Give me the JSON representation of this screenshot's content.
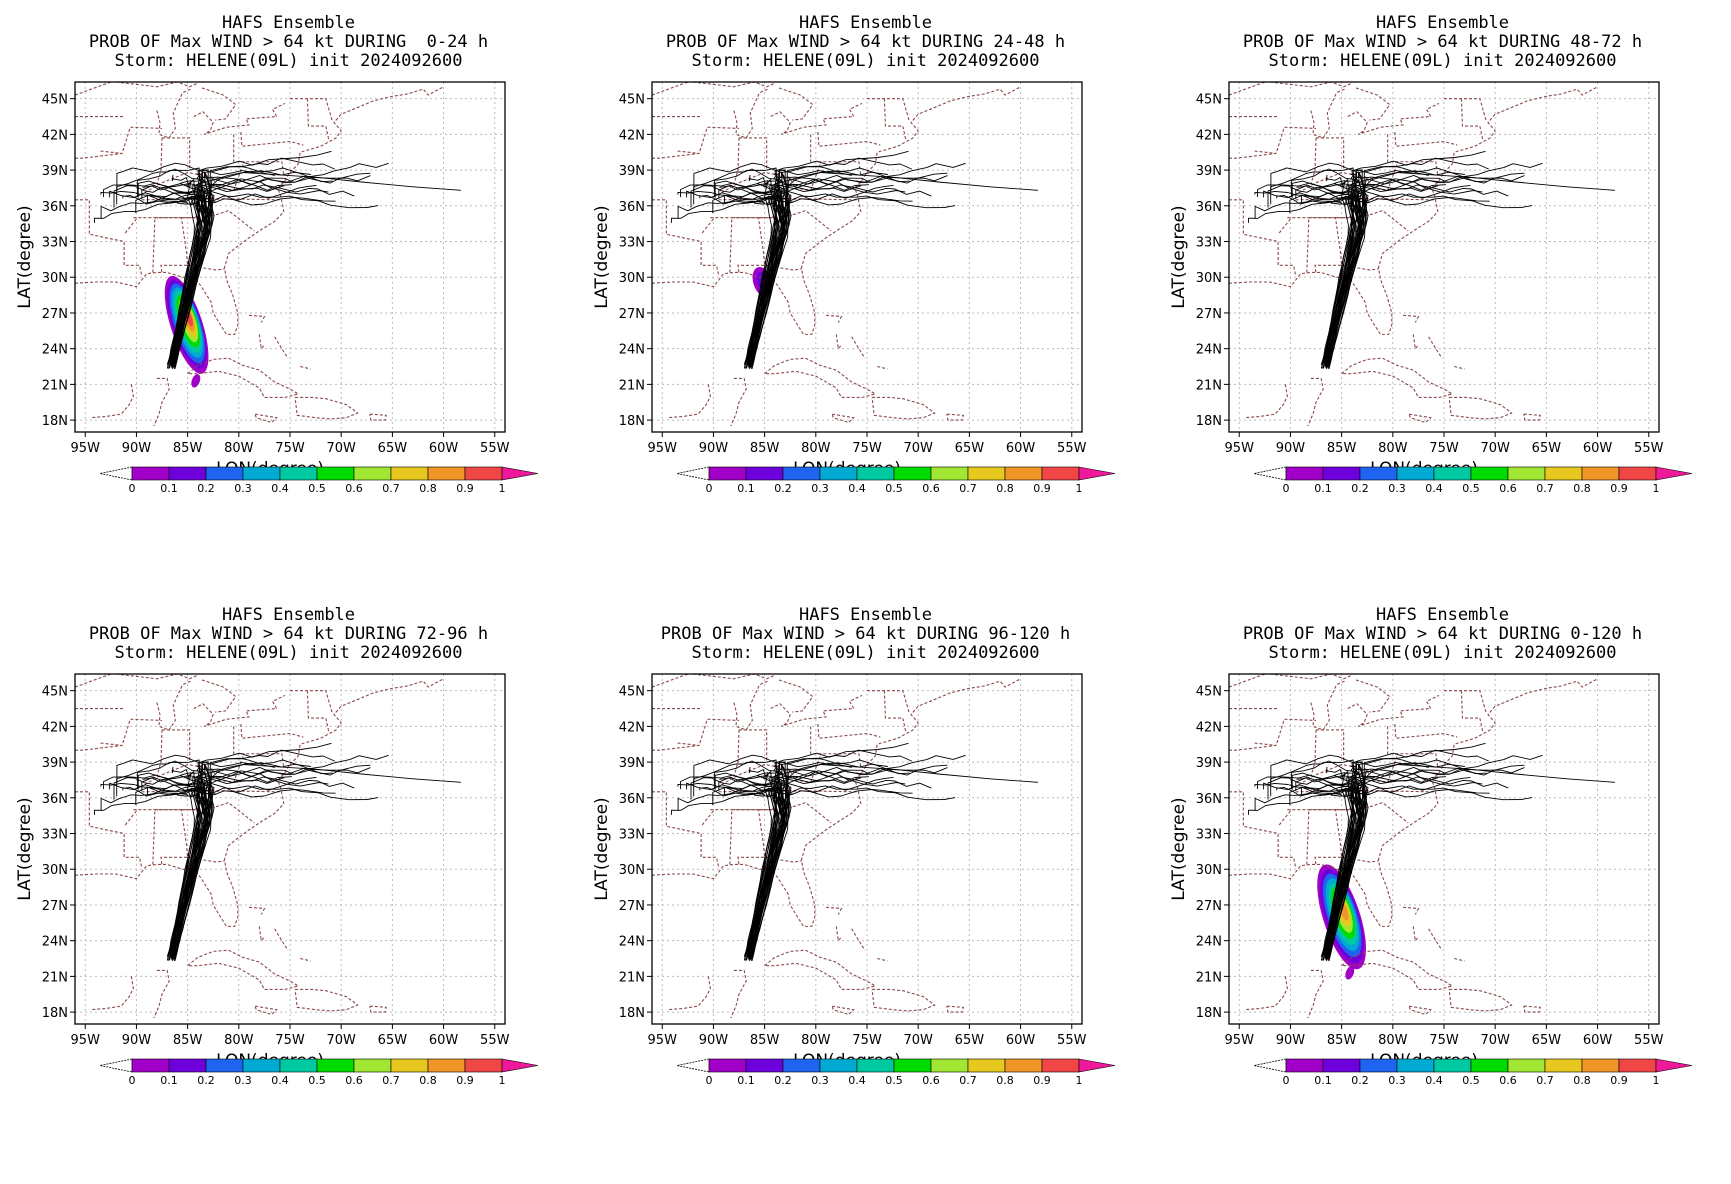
{
  "figure": {
    "panels": [
      {
        "title_line1": "HAFS Ensemble",
        "title_line2": "PROB OF Max WIND > 64 kt DURING  0-24 h",
        "title_line3": "Storm: HELENE(09L) init 2024092600",
        "prob_region": "0-24",
        "track_extent": [
          22,
          38.5
        ]
      },
      {
        "title_line1": "HAFS Ensemble",
        "title_line2": "PROB OF Max WIND > 64 kt DURING 24-48 h",
        "title_line3": "Storm: HELENE(09L) init 2024092600",
        "prob_region": "24-48",
        "track_extent": [
          22,
          38.5
        ]
      },
      {
        "title_line1": "HAFS Ensemble",
        "title_line2": "PROB OF Max WIND > 64 kt DURING 48-72 h",
        "title_line3": "Storm: HELENE(09L) init 2024092600",
        "prob_region": "none",
        "track_extent": [
          22,
          38.5
        ]
      },
      {
        "title_line1": "HAFS Ensemble",
        "title_line2": "PROB OF Max WIND > 64 kt DURING 72-96 h",
        "title_line3": "Storm: HELENE(09L) init 2024092600",
        "prob_region": "none",
        "track_extent": [
          22,
          38.5
        ]
      },
      {
        "title_line1": "HAFS Ensemble",
        "title_line2": "PROB OF Max WIND > 64 kt DURING 96-120 h",
        "title_line3": "Storm: HELENE(09L) init 2024092600",
        "prob_region": "none",
        "track_extent": [
          22,
          38.5
        ]
      },
      {
        "title_line1": "HAFS Ensemble",
        "title_line2": "PROB OF Max WIND > 64 kt DURING 0-120 h",
        "title_line3": "Storm: HELENE(09L) init 2024092600",
        "prob_region": "0-120",
        "track_extent": [
          22,
          38.5
        ]
      }
    ],
    "axes": {
      "xlabel": "LON(degree)",
      "ylabel": "LAT(degree)",
      "xticks": [
        "95W",
        "90W",
        "85W",
        "80W",
        "75W",
        "70W",
        "65W",
        "60W",
        "55W"
      ],
      "yticks": [
        "45N",
        "42N",
        "39N",
        "36N",
        "33N",
        "30N",
        "27N",
        "24N",
        "21N",
        "18N"
      ],
      "xlim": [
        -96,
        -54
      ],
      "ylim": [
        17,
        46.4
      ]
    },
    "colorbar": {
      "labels": [
        "0",
        "0.1",
        "0.2",
        "0.3",
        "0.4",
        "0.5",
        "0.6",
        "0.7",
        "0.8",
        "0.9",
        "1"
      ],
      "colors": [
        "#a000c8",
        "#6e00dc",
        "#1e64f0",
        "#00aad2",
        "#00c8a0",
        "#00dc00",
        "#a0e632",
        "#e6c81e",
        "#f09628",
        "#f04646",
        "#f0189a"
      ]
    },
    "styles": {
      "track_color": "#000000",
      "border_color": "#8b4a4a",
      "grid_color": "#bbbbbb"
    }
  }
}
